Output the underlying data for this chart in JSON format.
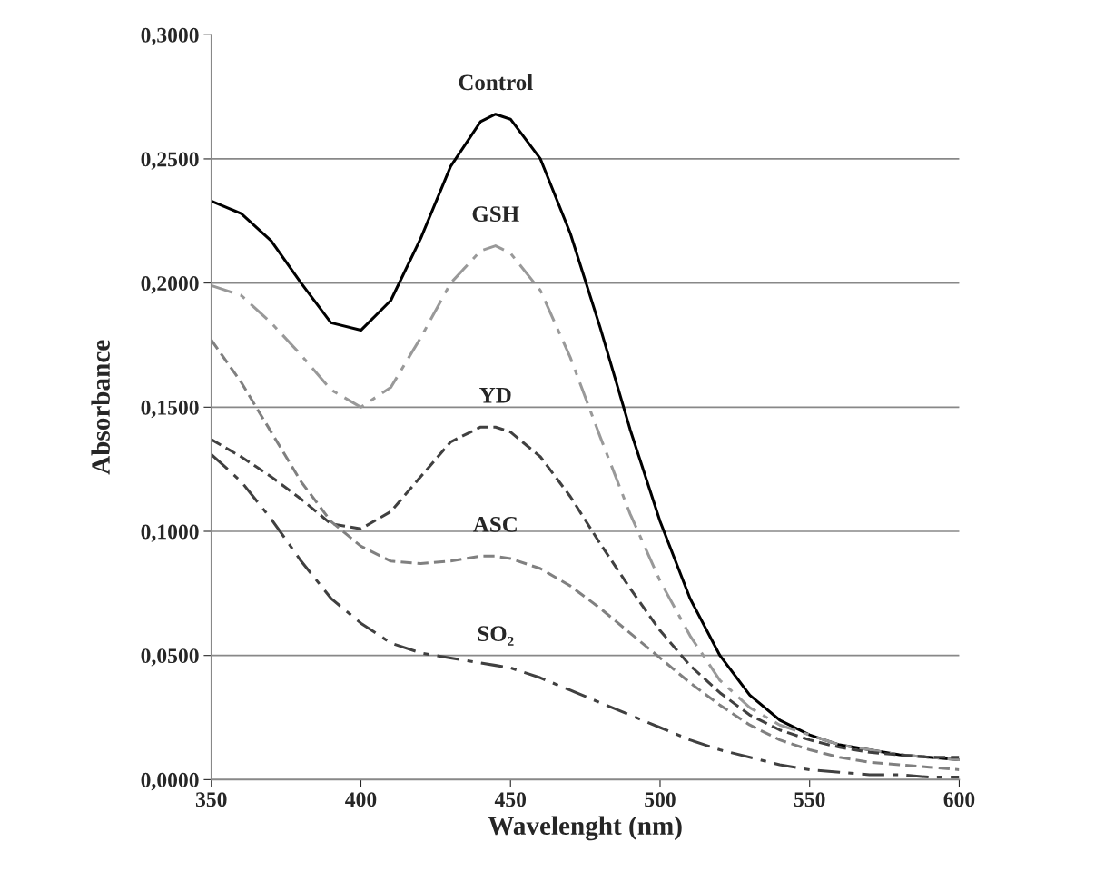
{
  "chart_data": {
    "type": "line",
    "xlabel": "Wavelenght (nm)",
    "ylabel": "Absorbance",
    "x": [
      350,
      360,
      370,
      380,
      390,
      400,
      410,
      420,
      430,
      440,
      445,
      450,
      460,
      470,
      480,
      490,
      500,
      510,
      520,
      530,
      540,
      550,
      560,
      570,
      580,
      590,
      600
    ],
    "series": [
      {
        "name": "Control",
        "color": "#000000",
        "line_style": "solid",
        "values": [
          0.233,
          0.228,
          0.217,
          0.2,
          0.184,
          0.181,
          0.193,
          0.218,
          0.247,
          0.265,
          0.268,
          0.266,
          0.25,
          0.22,
          0.182,
          0.141,
          0.104,
          0.073,
          0.05,
          0.034,
          0.024,
          0.018,
          0.014,
          0.012,
          0.01,
          0.009,
          0.008
        ]
      },
      {
        "name": "GSH",
        "color": "#999999",
        "line_style": "dashdot",
        "values": [
          0.199,
          0.195,
          0.184,
          0.171,
          0.157,
          0.15,
          0.158,
          0.178,
          0.2,
          0.213,
          0.215,
          0.212,
          0.197,
          0.17,
          0.138,
          0.107,
          0.08,
          0.058,
          0.04,
          0.029,
          0.022,
          0.018,
          0.014,
          0.012,
          0.01,
          0.009,
          0.008
        ]
      },
      {
        "name": "YD",
        "color": "#404040",
        "line_style": "dashed",
        "values": [
          0.137,
          0.13,
          0.122,
          0.113,
          0.103,
          0.101,
          0.108,
          0.122,
          0.136,
          0.142,
          0.142,
          0.14,
          0.13,
          0.114,
          0.095,
          0.077,
          0.06,
          0.046,
          0.035,
          0.026,
          0.02,
          0.016,
          0.013,
          0.011,
          0.01,
          0.009,
          0.009
        ]
      },
      {
        "name": "ASC",
        "color": "#808080",
        "line_style": "dashed",
        "values": [
          0.177,
          0.16,
          0.14,
          0.12,
          0.104,
          0.094,
          0.088,
          0.087,
          0.088,
          0.09,
          0.09,
          0.089,
          0.085,
          0.078,
          0.069,
          0.059,
          0.049,
          0.039,
          0.03,
          0.022,
          0.016,
          0.012,
          0.009,
          0.007,
          0.006,
          0.005,
          0.004
        ]
      },
      {
        "name": "SO₂",
        "color": "#404040",
        "line_style": "dashdot",
        "values": [
          0.131,
          0.12,
          0.105,
          0.088,
          0.073,
          0.063,
          0.055,
          0.051,
          0.049,
          0.047,
          0.046,
          0.045,
          0.041,
          0.036,
          0.031,
          0.026,
          0.021,
          0.016,
          0.012,
          0.009,
          0.006,
          0.004,
          0.003,
          0.002,
          0.002,
          0.001,
          0.001
        ]
      }
    ],
    "xlim": [
      350,
      600
    ],
    "xticks": [
      350,
      400,
      450,
      500,
      550,
      600
    ],
    "ylim": [
      0,
      0.3
    ],
    "yticks": [
      {
        "value": 0,
        "label": "0,0000"
      },
      {
        "value": 0.05,
        "label": "0,0500"
      },
      {
        "value": 0.1,
        "label": "0,1000"
      },
      {
        "value": 0.15,
        "label": "0,1500"
      },
      {
        "value": 0.2,
        "label": "0,2000"
      },
      {
        "value": 0.25,
        "label": "0,2500"
      },
      {
        "value": 0.3,
        "label": "0,3000"
      }
    ],
    "grid": "y",
    "legend": false,
    "marker": "none"
  }
}
